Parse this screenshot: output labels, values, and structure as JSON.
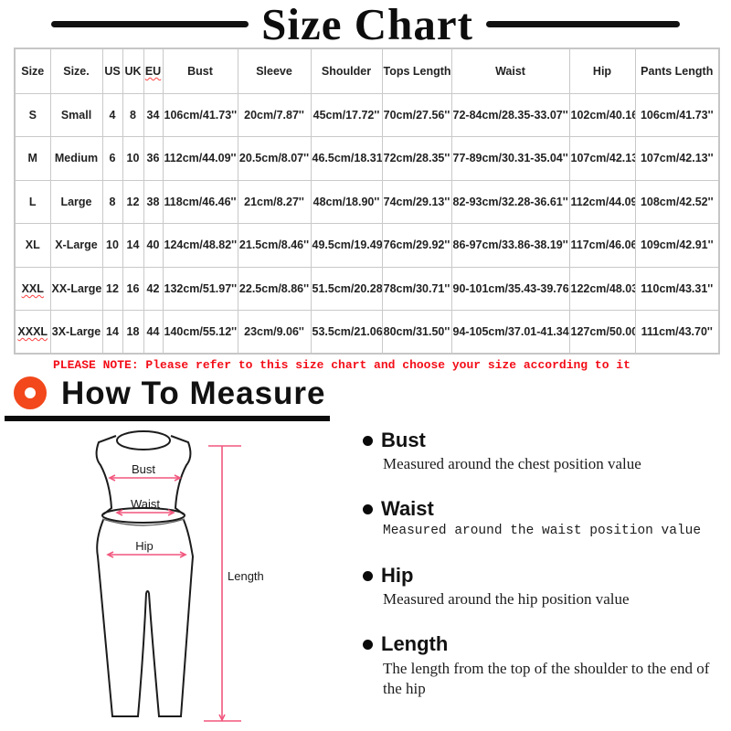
{
  "title": "Size Chart",
  "size_table": {
    "headers": [
      "Size",
      "Size.",
      "US",
      "UK",
      "EU",
      "Bust",
      "Sleeve",
      "Shoulder",
      "Tops Length",
      "Waist",
      "Hip",
      "Pants Length"
    ],
    "rows": [
      [
        "S",
        "Small",
        "4",
        "8",
        "34",
        "106cm/41.73''",
        "20cm/7.87''",
        "45cm/17.72''",
        "70cm/27.56''",
        "72-84cm/28.35-33.07''",
        "102cm/40.16''",
        "106cm/41.73''"
      ],
      [
        "M",
        "Medium",
        "6",
        "10",
        "36",
        "112cm/44.09''",
        "20.5cm/8.07''",
        "46.5cm/18.31''",
        "72cm/28.35''",
        "77-89cm/30.31-35.04''",
        "107cm/42.13''",
        "107cm/42.13''"
      ],
      [
        "L",
        "Large",
        "8",
        "12",
        "38",
        "118cm/46.46''",
        "21cm/8.27''",
        "48cm/18.90''",
        "74cm/29.13''",
        "82-93cm/32.28-36.61''",
        "112cm/44.09''",
        "108cm/42.52''"
      ],
      [
        "XL",
        "X-Large",
        "10",
        "14",
        "40",
        "124cm/48.82''",
        "21.5cm/8.46''",
        "49.5cm/19.49''",
        "76cm/29.92''",
        "86-97cm/33.86-38.19''",
        "117cm/46.06''",
        "109cm/42.91''"
      ],
      [
        "XXL",
        "XX-Large",
        "12",
        "16",
        "42",
        "132cm/51.97''",
        "22.5cm/8.86''",
        "51.5cm/20.28''",
        "78cm/30.71''",
        "90-101cm/35.43-39.76''",
        "122cm/48.03''",
        "110cm/43.31''"
      ],
      [
        "XXXL",
        "3X-Large",
        "14",
        "18",
        "44",
        "140cm/55.12''",
        "23cm/9.06''",
        "53.5cm/21.06''",
        "80cm/31.50''",
        "94-105cm/37.01-41.34''",
        "127cm/50.00''",
        "111cm/43.70''"
      ]
    ]
  },
  "note": "PLEASE NOTE: Please refer to this size chart and choose your size according to it",
  "how_to_measure": {
    "heading": "How To Measure",
    "items": [
      {
        "label": "Bust",
        "desc": "Measured around the chest position value"
      },
      {
        "label": "Waist",
        "desc": "Measured around the waist position value"
      },
      {
        "label": "Hip",
        "desc": "Measured around the  hip position value"
      },
      {
        "label": "Length",
        "desc": "The length from the top of the shoulder to the end of the hip"
      }
    ]
  },
  "diagram_labels": {
    "bust": "Bust",
    "waist": "Waist",
    "hip": "Hip",
    "length": "Length"
  },
  "colors": {
    "accent_orange": "#f2481b",
    "note_red": "#f30d17",
    "measure_pink": "#f2577e"
  }
}
